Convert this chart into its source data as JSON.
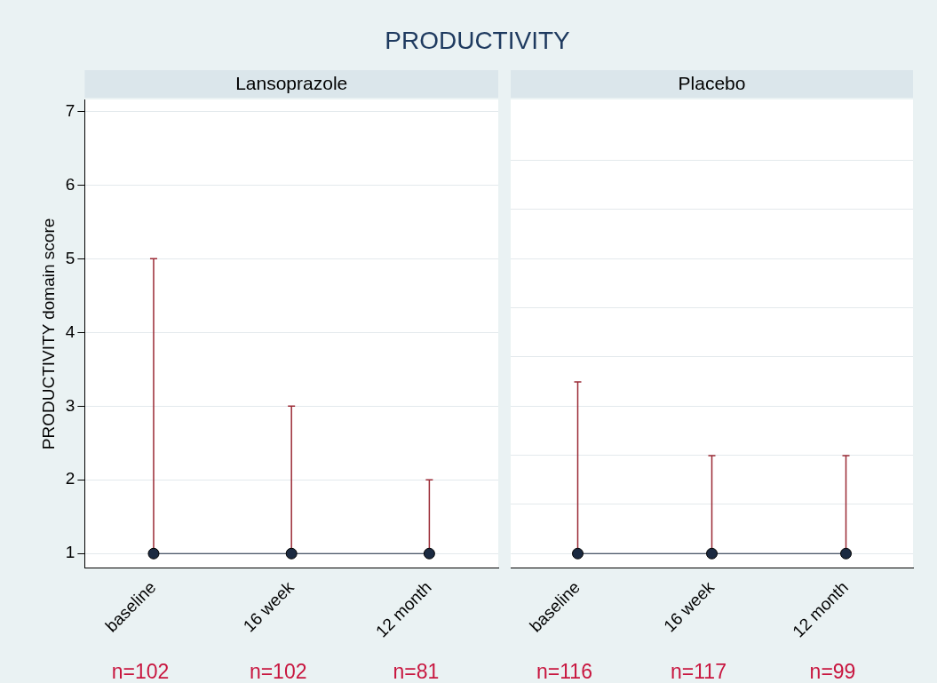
{
  "chart_data": [
    {
      "type": "line",
      "title": "PRODUCTIVITY",
      "subtitle": "Lansoprazole",
      "ylabel": "PRODUCTIVITY domain score",
      "categories": [
        "baseline",
        "16 week",
        "12 month"
      ],
      "ylim": [
        0.8,
        7.16
      ],
      "yticks": [
        1,
        2,
        3,
        4,
        5,
        6,
        7
      ],
      "grid": "y",
      "marker": "circle",
      "annotations": [
        "n=102",
        "n=102",
        "n=81"
      ],
      "series": [
        {
          "color": "#1b2a41",
          "values": [
            1,
            1,
            1
          ],
          "errors": [
            [
              1,
              5
            ],
            [
              1,
              3
            ],
            [
              1,
              2
            ]
          ]
        }
      ]
    },
    {
      "type": "line",
      "subtitle": "Placebo",
      "categories": [
        "baseline",
        "16 week",
        "12 month"
      ],
      "ylim": [
        0.8,
        7.16
      ],
      "yticks": [
        {
          "value": 1,
          "label": null
        },
        {
          "value": 1.67,
          "label": null
        },
        {
          "value": 2.33,
          "label": null
        },
        {
          "value": 3,
          "label": null
        },
        {
          "value": 3.67,
          "label": null
        },
        {
          "value": 4.33,
          "label": null
        },
        {
          "value": 5,
          "label": null
        },
        {
          "value": 5.67,
          "label": null
        },
        {
          "value": 6.33,
          "label": null
        }
      ],
      "grid": "y",
      "tick_labels": "x",
      "marker": "circle",
      "annotations": [
        "n=116",
        "n=117",
        "n=99"
      ],
      "series": [
        {
          "color": "#1b2a41",
          "values": [
            1,
            1,
            1
          ],
          "errors": [
            [
              1,
              3.33
            ],
            [
              1,
              2.33
            ],
            [
              1,
              2.33
            ]
          ]
        }
      ]
    }
  ]
}
